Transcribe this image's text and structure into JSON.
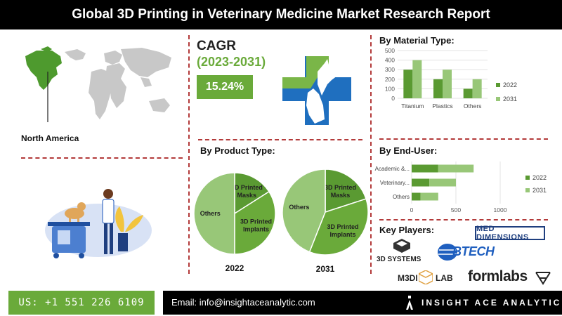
{
  "report": {
    "title": "Global 3D Printing in Veterinary Medicine Market Research Report"
  },
  "region": {
    "label": "North America"
  },
  "cagr": {
    "title": "CAGR",
    "years": "(2023-2031)",
    "value": "15.24%"
  },
  "sections": {
    "material": "By Material Type:",
    "product": "By Product Type:",
    "end_user": "By End-User:",
    "key_players": "Key Players:"
  },
  "colors": {
    "dark_green": "#5a9a32",
    "light_green": "#98c778",
    "mid_green": "#6aaa3a",
    "blue": "#1f6fbf",
    "divider": "#b33a3a"
  },
  "chart_data": [
    {
      "type": "bar",
      "orientation": "vertical",
      "title": "By Material Type:",
      "categories": [
        "Titanium",
        "Plastics",
        "Others"
      ],
      "series": [
        {
          "name": "2022",
          "values": [
            300,
            200,
            100
          ]
        },
        {
          "name": "2031",
          "values": [
            400,
            300,
            200
          ]
        }
      ],
      "ylim": [
        0,
        500
      ],
      "yticks": [
        "0",
        "100",
        "200",
        "300",
        "400",
        "500"
      ],
      "legend": "right",
      "grid": true
    },
    {
      "type": "pie",
      "title": "2022",
      "slices": [
        {
          "label": "3D Printed Masks",
          "value": 16
        },
        {
          "label": "3D Printed Implants",
          "value": 34
        },
        {
          "label": "Others",
          "value": 50
        }
      ]
    },
    {
      "type": "pie",
      "title": "2031",
      "slices": [
        {
          "label": "3D Printed Masks",
          "value": 20
        },
        {
          "label": "3D Printed Implants",
          "value": 36
        },
        {
          "label": "Others",
          "value": 44
        }
      ]
    },
    {
      "type": "bar",
      "orientation": "horizontal",
      "title": "By End-User:",
      "categories": [
        "Academic &...",
        "Veterinary...",
        "Others"
      ],
      "series": [
        {
          "name": "2022",
          "values": [
            300,
            200,
            100
          ]
        },
        {
          "name": "2031",
          "values": [
            400,
            300,
            200
          ]
        }
      ],
      "xlim": [
        0,
        1000
      ],
      "xticks": [
        "0",
        "500",
        "1000"
      ],
      "stacked": true,
      "legend": "right",
      "grid": true
    }
  ],
  "key_players": {
    "logos": [
      "MED DIMENSIONS",
      "3D SYSTEMS",
      "BTECH",
      "M3DI",
      "LAB",
      "formlabs"
    ]
  },
  "footer": {
    "phone": "US: +1 551 226 6109",
    "email": "Email: info@insightaceanalytic.com",
    "brand": "INSIGHT ACE ANALYTIC"
  },
  "icons": {
    "brand": "insight-ace-logo-icon",
    "cross": "vet-cross-icon"
  }
}
